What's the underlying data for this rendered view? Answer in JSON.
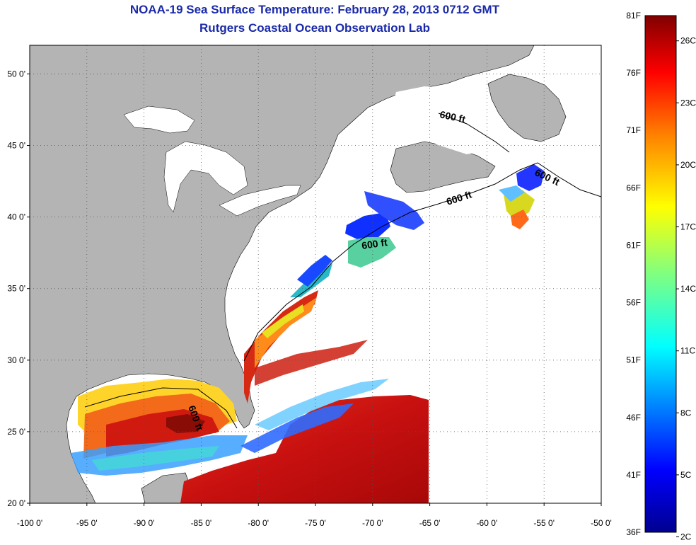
{
  "title": "NOAA-19 Sea Surface Temperature:  February 28, 2013 0712 GMT",
  "subtitle": "Rutgers Coastal Ocean Observation Lab",
  "map": {
    "lon_range": [
      -100,
      -50
    ],
    "lat_range": [
      20,
      52
    ],
    "lon_ticks": [
      "-100 0'",
      "-95 0'",
      "-90 0'",
      "-85 0'",
      "-80 0'",
      "-75 0'",
      "-70 0'",
      "-65 0'",
      "-60 0'",
      "-55 0'",
      "-50 0'"
    ],
    "lat_ticks": [
      "20 0'",
      "25 0'",
      "30 0'",
      "35 0'",
      "40 0'",
      "45 0'",
      "50 0'"
    ],
    "land_color": "#b4b4b4",
    "water_no_data_color": "#ffffff",
    "contour_label": "600 ft"
  },
  "colorbar": {
    "fahrenheit_labels": [
      "81F",
      "76F",
      "71F",
      "66F",
      "61F",
      "56F",
      "51F",
      "46F",
      "41F",
      "36F"
    ],
    "celsius_labels": [
      "26C",
      "23C",
      "20C",
      "17C",
      "14C",
      "11C",
      "8C",
      "5C",
      "2C"
    ],
    "colors": [
      "#00008f",
      "#0000ff",
      "#0080ff",
      "#00ffff",
      "#80ff80",
      "#ffff00",
      "#ff8000",
      "#ff0000",
      "#800000"
    ]
  }
}
